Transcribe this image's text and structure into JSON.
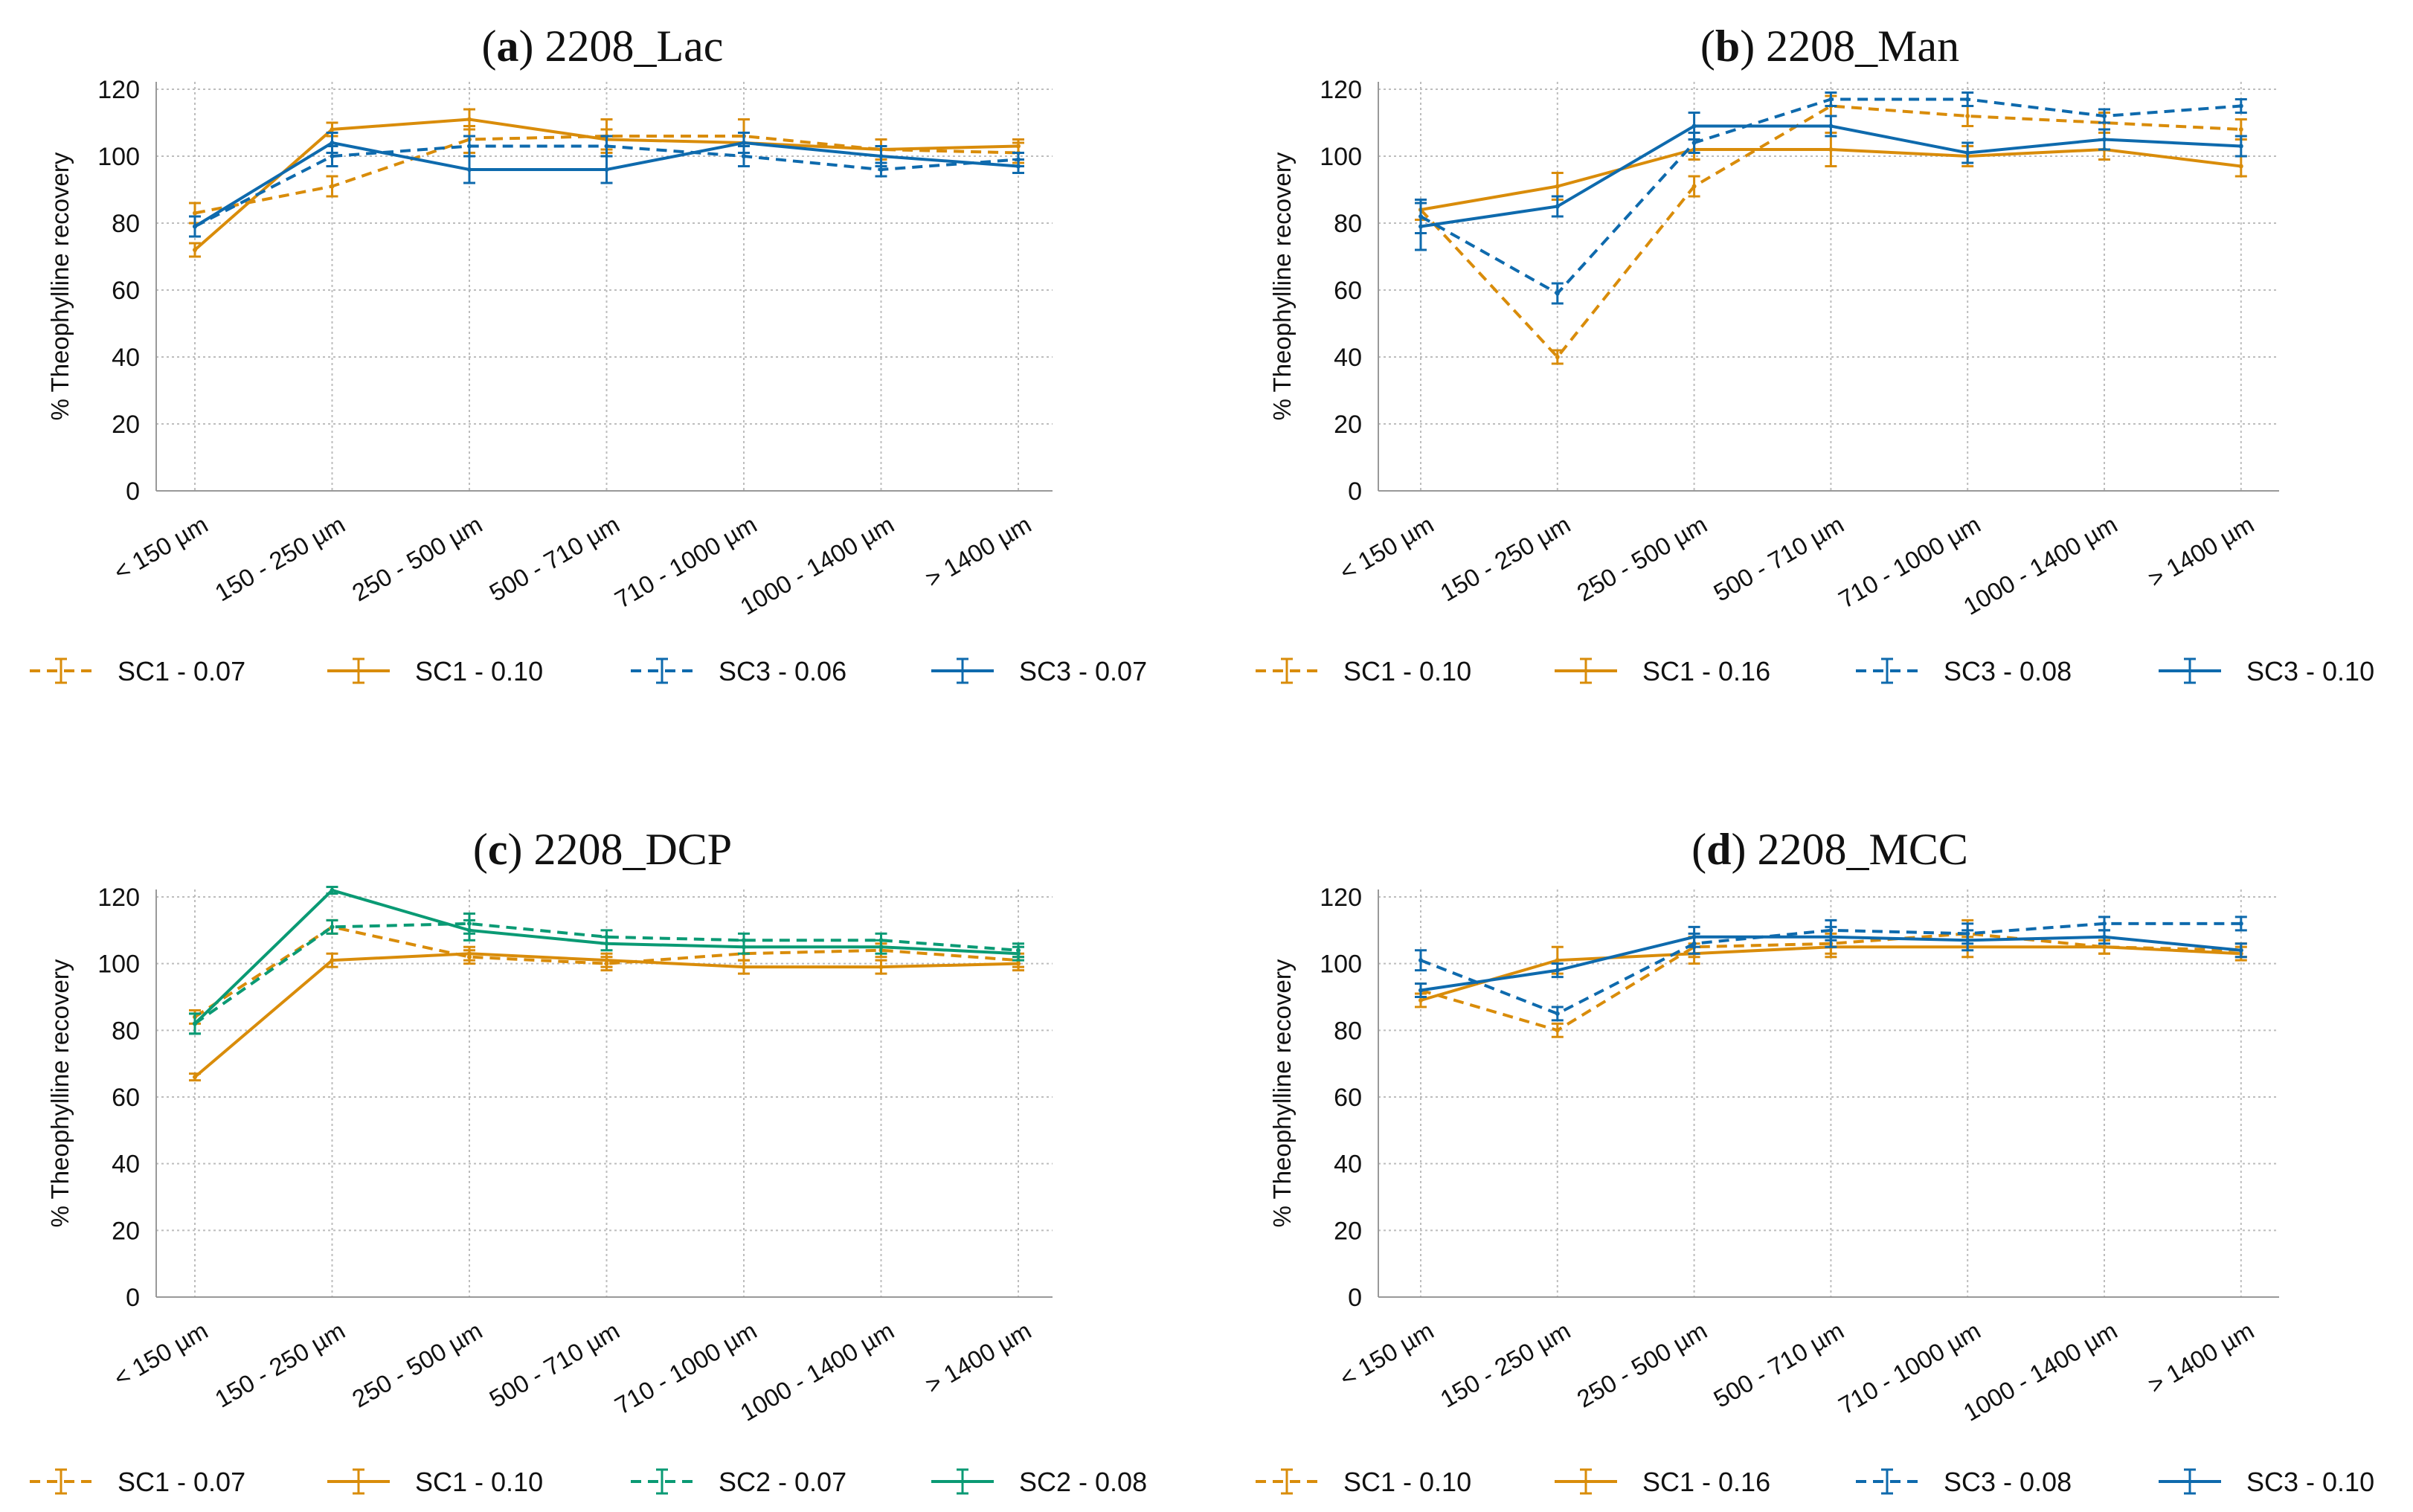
{
  "colors": {
    "orange": "#d98c0a",
    "blue": "#0e6aad",
    "green": "#0a9a74"
  },
  "chart_data": [
    {
      "type": "line",
      "panel": "a",
      "title_letter": "a",
      "title_text": "2208_Lac",
      "xlabel": "",
      "ylabel": "% Theophylline recovery",
      "categories": [
        "< 150 µm",
        "150 - 250 µm",
        "250 - 500 µm",
        "500 - 710 µm",
        "710 - 1000 µm",
        "1000 - 1400 µm",
        "> 1400 µm"
      ],
      "ylim": [
        0,
        120
      ],
      "yticks": [
        0,
        20,
        40,
        60,
        80,
        100,
        120
      ],
      "grid": true,
      "legend_position": "bottom",
      "series": [
        {
          "name": "SC1 - 0.07",
          "color": "orange",
          "dashed": true,
          "values": [
            83,
            91,
            105,
            106,
            106,
            102,
            101
          ],
          "errors": [
            3,
            3,
            4,
            5,
            5,
            3,
            3
          ]
        },
        {
          "name": "SC1 - 0.10",
          "color": "orange",
          "dashed": false,
          "values": [
            72,
            108,
            111,
            105,
            104,
            102,
            103
          ],
          "errors": [
            2,
            2,
            3,
            3,
            3,
            3,
            2
          ]
        },
        {
          "name": "SC3 - 0.06",
          "color": "blue",
          "dashed": true,
          "values": [
            79,
            100,
            103,
            103,
            100,
            96,
            99
          ],
          "errors": [
            3,
            3,
            3,
            3,
            3,
            2,
            2
          ]
        },
        {
          "name": "SC3 - 0.07",
          "color": "blue",
          "dashed": false,
          "values": [
            79,
            104,
            96,
            96,
            104,
            100,
            97
          ],
          "errors": [
            3,
            3,
            4,
            4,
            3,
            3,
            2
          ]
        }
      ]
    },
    {
      "type": "line",
      "panel": "b",
      "title_letter": "b",
      "title_text": "2208_Man",
      "xlabel": "",
      "ylabel": "% Theophylline recovery",
      "categories": [
        "< 150 µm",
        "150 - 250 µm",
        "250 - 500 µm",
        "500 - 710 µm",
        "710 - 1000 µm",
        "1000 - 1400 µm",
        "> 1400 µm"
      ],
      "ylim": [
        0,
        120
      ],
      "yticks": [
        0,
        20,
        40,
        60,
        80,
        100,
        120
      ],
      "grid": true,
      "legend_position": "bottom",
      "series": [
        {
          "name": "SC1 - 0.10",
          "color": "orange",
          "dashed": true,
          "values": [
            84,
            40,
            91,
            115,
            112,
            110,
            108
          ],
          "errors": [
            3,
            2,
            3,
            3,
            3,
            3,
            3
          ]
        },
        {
          "name": "SC1 - 0.16",
          "color": "orange",
          "dashed": false,
          "values": [
            84,
            91,
            102,
            102,
            100,
            102,
            97
          ],
          "errors": [
            3,
            4,
            3,
            5,
            3,
            3,
            3
          ]
        },
        {
          "name": "SC3 - 0.08",
          "color": "blue",
          "dashed": true,
          "values": [
            82,
            59,
            104,
            117,
            117,
            112,
            115
          ],
          "errors": [
            5,
            3,
            3,
            2,
            2,
            2,
            2
          ]
        },
        {
          "name": "SC3 - 0.10",
          "color": "blue",
          "dashed": false,
          "values": [
            79,
            85,
            109,
            109,
            101,
            105,
            103
          ],
          "errors": [
            7,
            3,
            4,
            3,
            3,
            3,
            3
          ]
        }
      ]
    },
    {
      "type": "line",
      "panel": "c",
      "title_letter": "c",
      "title_text": "2208_DCP",
      "xlabel": "",
      "ylabel": "% Theophylline recovery",
      "categories": [
        "< 150 µm",
        "150 - 250 µm",
        "250 - 500 µm",
        "500 - 710 µm",
        "710 - 1000 µm",
        "1000 - 1400 µm",
        "> 1400 µm"
      ],
      "ylim": [
        0,
        120
      ],
      "yticks": [
        0,
        20,
        40,
        60,
        80,
        100,
        120
      ],
      "grid": true,
      "legend_position": "bottom",
      "series": [
        {
          "name": "SC1 - 0.07",
          "color": "orange",
          "dashed": true,
          "values": [
            84,
            111,
            102,
            100,
            103,
            104,
            101
          ],
          "errors": [
            2,
            2,
            2,
            2,
            2,
            2,
            2
          ]
        },
        {
          "name": "SC1 - 0.10",
          "color": "orange",
          "dashed": false,
          "values": [
            66,
            101,
            103,
            101,
            99,
            99,
            100
          ],
          "errors": [
            1,
            2,
            2,
            2,
            2,
            2,
            2
          ]
        },
        {
          "name": "SC2 - 0.07",
          "color": "green",
          "dashed": true,
          "values": [
            82,
            111,
            112,
            108,
            107,
            107,
            104
          ],
          "errors": [
            3,
            2,
            3,
            2,
            2,
            2,
            2
          ]
        },
        {
          "name": "SC2 - 0.08",
          "color": "green",
          "dashed": false,
          "values": [
            82,
            122,
            110,
            106,
            105,
            105,
            103
          ],
          "errors": [
            3,
            1,
            3,
            2,
            2,
            2,
            2
          ]
        }
      ]
    },
    {
      "type": "line",
      "panel": "d",
      "title_letter": "d",
      "title_text": "2208_MCC",
      "xlabel": "",
      "ylabel": "% Theophylline recovery",
      "categories": [
        "< 150 µm",
        "150 - 250 µm",
        "250 - 500 µm",
        "500 - 710 µm",
        "710 - 1000 µm",
        "1000 - 1400 µm",
        "> 1400 µm"
      ],
      "ylim": [
        0,
        120
      ],
      "yticks": [
        0,
        20,
        40,
        60,
        80,
        100,
        120
      ],
      "grid": true,
      "legend_position": "bottom",
      "series": [
        {
          "name": "SC1 - 0.10",
          "color": "orange",
          "dashed": true,
          "values": [
            92,
            80,
            105,
            106,
            109,
            105,
            104
          ],
          "errors": [
            2,
            2,
            3,
            3,
            4,
            2,
            2
          ]
        },
        {
          "name": "SC1 - 0.16",
          "color": "orange",
          "dashed": false,
          "values": [
            89,
            101,
            103,
            105,
            105,
            105,
            103
          ],
          "errors": [
            2,
            4,
            3,
            3,
            3,
            2,
            2
          ]
        },
        {
          "name": "SC3 - 0.08",
          "color": "blue",
          "dashed": true,
          "values": [
            101,
            85,
            106,
            110,
            109,
            112,
            112
          ],
          "errors": [
            3,
            2,
            3,
            3,
            3,
            2,
            2
          ]
        },
        {
          "name": "SC3 - 0.10",
          "color": "blue",
          "dashed": false,
          "values": [
            92,
            98,
            108,
            108,
            107,
            108,
            104
          ],
          "errors": [
            2,
            2,
            3,
            3,
            3,
            2,
            2
          ]
        }
      ]
    }
  ]
}
